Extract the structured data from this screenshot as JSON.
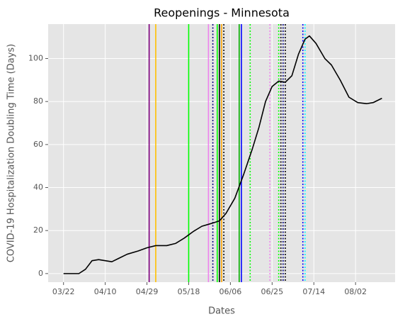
{
  "chart_data": {
    "type": "line",
    "title": "Reopenings - Minnesota",
    "xlabel": "Dates",
    "ylabel": "COVID-19 Hospitalization Doubling Time (Days)",
    "x": [
      "03/22",
      "03/29",
      "04/01",
      "04/04",
      "04/07",
      "04/13",
      "04/16",
      "04/20",
      "04/25",
      "04/29",
      "05/03",
      "05/08",
      "05/12",
      "05/16",
      "05/20",
      "05/24",
      "05/29",
      "06/01",
      "06/04",
      "06/08",
      "06/12",
      "06/16",
      "06/19",
      "06/22",
      "06/25",
      "06/28",
      "07/01",
      "07/04",
      "07/07",
      "07/10",
      "07/12",
      "07/15",
      "07/19",
      "07/22",
      "07/26",
      "07/30",
      "08/03",
      "08/07",
      "08/10",
      "08/14"
    ],
    "values": [
      0,
      0,
      2,
      6,
      6.5,
      5.5,
      7,
      9,
      10.5,
      12,
      13,
      13,
      14,
      16.5,
      19.5,
      22,
      23.5,
      24.5,
      28,
      35,
      46,
      58,
      68,
      80,
      87,
      89.5,
      89,
      92,
      102,
      109,
      110.5,
      107,
      100,
      97,
      90,
      82,
      79.5,
      79,
      79.5,
      81.5
    ],
    "color": "#000000",
    "events": [
      {
        "x": "04/30",
        "color": "#800080",
        "style": "solid"
      },
      {
        "x": "05/03",
        "color": "#ffc000",
        "style": "solid"
      },
      {
        "x": "05/18",
        "color": "#00ff00",
        "style": "solid"
      },
      {
        "x": "05/27",
        "color": "#ee82ee",
        "style": "solid"
      },
      {
        "x": "05/29",
        "color": "#000080",
        "style": "dotted"
      },
      {
        "x": "05/31",
        "color": "#00ff00",
        "style": "solid"
      },
      {
        "x": "06/01",
        "color": "#000000",
        "style": "solid"
      },
      {
        "x": "06/02",
        "color": "#ffa500",
        "style": "solid"
      },
      {
        "x": "06/03",
        "color": "#000000",
        "style": "dotted"
      },
      {
        "x": "06/10",
        "color": "#00aa00",
        "style": "solid"
      },
      {
        "x": "06/11",
        "color": "#0000ff",
        "style": "solid"
      },
      {
        "x": "06/15",
        "color": "#00ff00",
        "style": "dotted"
      },
      {
        "x": "06/24",
        "color": "#ee82ee",
        "style": "dotted"
      },
      {
        "x": "06/28",
        "color": "#00ff00",
        "style": "dotted"
      },
      {
        "x": "06/29",
        "color": "#000000",
        "style": "dotted"
      },
      {
        "x": "06/30",
        "color": "#000080",
        "style": "dotted"
      },
      {
        "x": "07/01",
        "color": "#000000",
        "style": "dotted"
      },
      {
        "x": "07/09",
        "color": "#0000ff",
        "style": "dotted"
      },
      {
        "x": "07/10",
        "color": "#00ffff",
        "style": "dotted"
      }
    ],
    "xlim": [
      "03/15",
      "08/20"
    ],
    "xticks": [
      "03/22",
      "04/10",
      "04/29",
      "05/18",
      "06/06",
      "06/25",
      "07/14",
      "08/02"
    ],
    "ylim": [
      -4,
      116
    ],
    "yticks": [
      0,
      20,
      40,
      60,
      80,
      100
    ],
    "grid": true
  }
}
